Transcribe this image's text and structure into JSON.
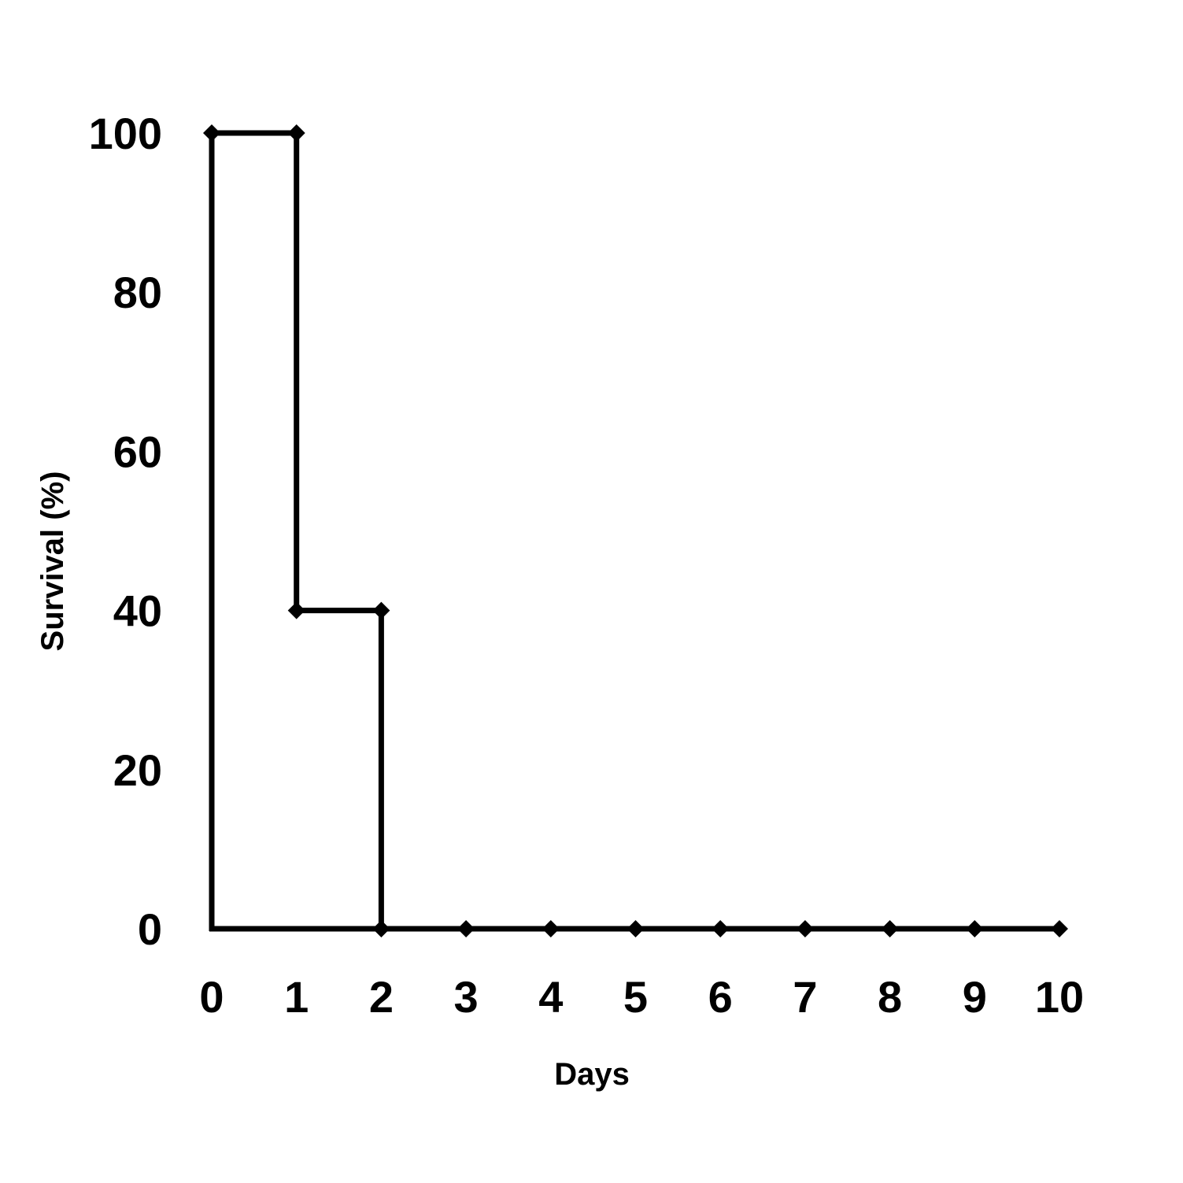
{
  "chart_data": {
    "type": "line",
    "step": true,
    "xlabel": "Days",
    "ylabel": "Survival (%)",
    "xlim": [
      0,
      10
    ],
    "ylim": [
      0,
      100
    ],
    "x_ticks": [
      0,
      1,
      2,
      3,
      4,
      5,
      6,
      7,
      8,
      9,
      10
    ],
    "y_ticks": [
      0,
      20,
      40,
      60,
      80,
      100
    ],
    "grid": false,
    "legend": "none",
    "line_color": "#000000",
    "marker": "diamond",
    "series": [
      {
        "points": [
          {
            "x": 0,
            "y": 100
          },
          {
            "x": 1,
            "y": 100
          },
          {
            "x": 1,
            "y": 40
          },
          {
            "x": 2,
            "y": 40
          },
          {
            "x": 2,
            "y": 0
          },
          {
            "x": 3,
            "y": 0
          },
          {
            "x": 4,
            "y": 0
          },
          {
            "x": 5,
            "y": 0
          },
          {
            "x": 6,
            "y": 0
          },
          {
            "x": 7,
            "y": 0
          },
          {
            "x": 8,
            "y": 0
          },
          {
            "x": 9,
            "y": 0
          },
          {
            "x": 10,
            "y": 0
          }
        ]
      }
    ]
  }
}
